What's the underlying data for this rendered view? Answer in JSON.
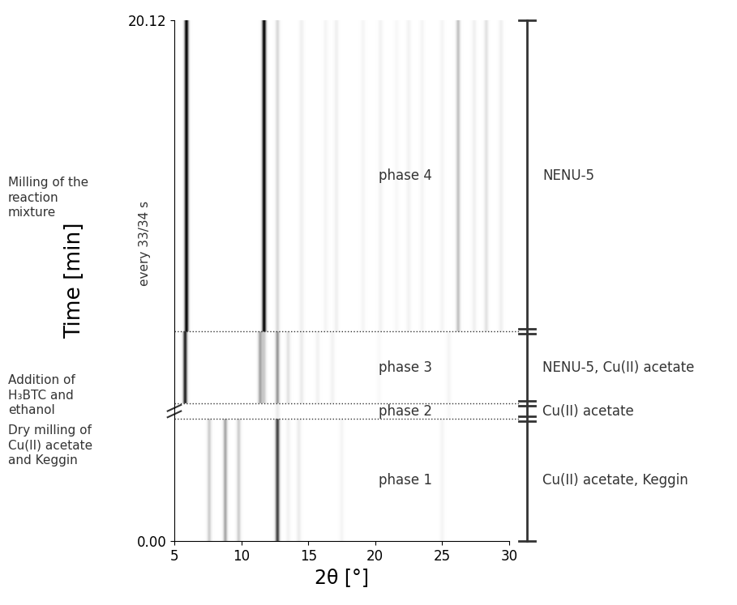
{
  "chart_data": {
    "type": "heatmap",
    "x_label": "2θ [°]",
    "y_label": "Time [min]",
    "y_note": "every 33/34 s",
    "xlim": [
      5,
      30
    ],
    "xticks": [
      5,
      10,
      15,
      20,
      25,
      30
    ],
    "ylim": [
      0,
      20.12
    ],
    "yticks": [
      {
        "value": 0,
        "label": "0.00"
      },
      {
        "value": 20.12,
        "label": "20.12"
      }
    ],
    "phases": [
      {
        "name": "phase 1",
        "start": 0,
        "end": 4.72,
        "composition": "Cu(II) acetate, Keggin",
        "peaks": [
          {
            "two_theta": 7.6,
            "intensity": 0.3
          },
          {
            "two_theta": 8.8,
            "intensity": 0.45
          },
          {
            "two_theta": 9.8,
            "intensity": 0.3
          },
          {
            "two_theta": 12.7,
            "intensity": 0.8
          },
          {
            "two_theta": 13.5,
            "intensity": 0.1
          },
          {
            "two_theta": 14.3,
            "intensity": 0.15
          },
          {
            "two_theta": 17.5,
            "intensity": 0.08
          },
          {
            "two_theta": 25.0,
            "intensity": 0.08
          }
        ]
      },
      {
        "name": "phase 2",
        "start": 4.72,
        "end": 5.32,
        "composition": "Cu(II) acetate",
        "peaks": [
          {
            "two_theta": 12.7,
            "intensity": 0.15
          },
          {
            "two_theta": 25.5,
            "intensity": 0.05
          }
        ]
      },
      {
        "name": "phase 3",
        "start": 5.32,
        "end": 8.1,
        "composition": "NENU-5, Cu(II) acetate",
        "peaks": [
          {
            "two_theta": 5.8,
            "intensity": 0.9
          },
          {
            "two_theta": 11.4,
            "intensity": 0.45
          },
          {
            "two_theta": 11.7,
            "intensity": 0.3
          },
          {
            "two_theta": 12.7,
            "intensity": 0.5
          },
          {
            "two_theta": 13.5,
            "intensity": 0.2
          },
          {
            "two_theta": 14.5,
            "intensity": 0.15
          },
          {
            "two_theta": 15.7,
            "intensity": 0.1
          },
          {
            "two_theta": 16.8,
            "intensity": 0.1
          },
          {
            "two_theta": 20.3,
            "intensity": 0.05
          },
          {
            "two_theta": 25.5,
            "intensity": 0.08
          }
        ]
      },
      {
        "name": "phase 4",
        "start": 8.1,
        "end": 20.12,
        "composition": "NENU-5",
        "peaks": [
          {
            "two_theta": 5.9,
            "intensity": 1.0
          },
          {
            "two_theta": 11.7,
            "intensity": 1.0
          },
          {
            "two_theta": 12.7,
            "intensity": 0.25
          },
          {
            "two_theta": 14.5,
            "intensity": 0.12
          },
          {
            "two_theta": 16.3,
            "intensity": 0.08
          },
          {
            "two_theta": 17.1,
            "intensity": 0.12
          },
          {
            "two_theta": 19.1,
            "intensity": 0.08
          },
          {
            "two_theta": 20.4,
            "intensity": 0.1
          },
          {
            "two_theta": 21.6,
            "intensity": 0.06
          },
          {
            "two_theta": 22.5,
            "intensity": 0.1
          },
          {
            "two_theta": 23.5,
            "intensity": 0.08
          },
          {
            "two_theta": 25.0,
            "intensity": 0.08
          },
          {
            "two_theta": 26.2,
            "intensity": 0.35
          },
          {
            "two_theta": 27.4,
            "intensity": 0.12
          },
          {
            "two_theta": 28.3,
            "intensity": 0.2
          },
          {
            "two_theta": 29.4,
            "intensity": 0.12
          }
        ]
      }
    ],
    "annotations": [
      "Milling of the\nreaction\nmixture",
      "Addition of\nH₃BTC and\nethanol",
      "Dry milling of\nCu(II) acetate\nand Keggin"
    ]
  }
}
